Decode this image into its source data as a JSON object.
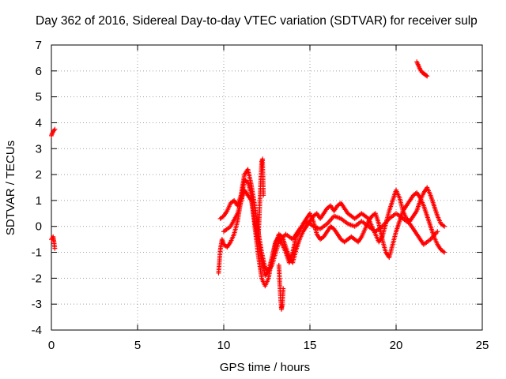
{
  "chart_data": {
    "type": "scatter",
    "title": "Day 362 of 2016, Sidereal Day-to-day VTEC variation (SDTVAR) for receiver sulp",
    "xlabel": "GPS time / hours",
    "ylabel": "SDTVAR / TECUs",
    "xlim": [
      0,
      25
    ],
    "ylim": [
      -4,
      7
    ],
    "x_ticks": [
      0,
      5,
      10,
      15,
      20,
      25
    ],
    "y_ticks": [
      -4,
      -3,
      -2,
      -1,
      0,
      1,
      2,
      3,
      4,
      5,
      6,
      7
    ],
    "grid": true,
    "marker": "+",
    "color": "#ff0000",
    "series": [
      {
        "segments": [
          {
            "x": [
              0.0,
              0.05,
              0.1,
              0.15,
              0.2
            ],
            "y": [
              3.5,
              3.6,
              3.65,
              3.7,
              3.75
            ]
          },
          {
            "x": [
              0.0,
              0.05,
              0.1,
              0.15,
              0.2
            ],
            "y": [
              -0.5,
              -0.45,
              -0.4,
              -0.6,
              -0.85
            ]
          },
          {
            "x": [
              9.7,
              9.8,
              9.9,
              10.0,
              10.2,
              10.4,
              10.6,
              10.8,
              11.0,
              11.2,
              11.4,
              11.6,
              11.8,
              12.0,
              12.2,
              12.4,
              12.6,
              12.8,
              13.0,
              13.2,
              13.4,
              13.6,
              13.8,
              14.0,
              14.2,
              14.4,
              14.6,
              14.8,
              15.0,
              15.2,
              15.4,
              15.6,
              15.8,
              16.0,
              16.2,
              16.4,
              16.6,
              16.8,
              17.0,
              17.2,
              17.4,
              17.6,
              17.8,
              18.0,
              18.2,
              18.4,
              18.6,
              18.8,
              19.0,
              19.2,
              19.4,
              19.6,
              19.8,
              20.0,
              20.2,
              20.4,
              20.6,
              20.8,
              21.0,
              21.2,
              21.4,
              21.6,
              21.8,
              22.0,
              22.2,
              22.4,
              22.6,
              22.8
            ],
            "y": [
              -1.8,
              -0.9,
              -0.5,
              -0.7,
              -0.8,
              -0.6,
              -0.3,
              0.2,
              1.0,
              1.8,
              1.7,
              1.2,
              0.0,
              -1.1,
              -2.0,
              -2.3,
              -2.0,
              -1.2,
              -0.6,
              -0.4,
              -0.7,
              -1.0,
              -1.4,
              -1.0,
              -0.4,
              -0.2,
              0.1,
              0.3,
              0.5,
              0.2,
              -0.3,
              -0.5,
              -0.4,
              -0.2,
              0.0,
              -0.1,
              -0.3,
              -0.5,
              -0.6,
              -0.5,
              -0.4,
              -0.5,
              -0.6,
              -0.4,
              -0.1,
              0.2,
              0.4,
              0.5,
              0.1,
              -0.5,
              -1.0,
              -1.2,
              -0.7,
              -0.2,
              0.2,
              0.6,
              0.8,
              1.0,
              1.2,
              1.3,
              1.1,
              0.8,
              0.4,
              0.0,
              -0.4,
              -0.7,
              -0.9,
              -1.0
            ]
          },
          {
            "x": [
              9.8,
              10.0,
              10.2,
              10.4,
              10.6,
              10.8,
              11.0,
              11.2,
              11.4,
              11.6,
              11.8,
              12.0,
              12.2,
              12.4,
              12.6,
              12.8,
              13.0,
              13.2,
              13.4,
              13.6,
              13.8,
              14.0,
              14.2,
              14.4,
              14.6,
              14.8,
              15.0,
              15.2,
              15.4,
              15.6,
              15.8,
              16.0,
              16.2,
              16.4,
              16.6,
              16.8,
              17.0,
              17.2,
              17.4,
              17.6,
              17.8,
              18.0,
              18.2,
              18.4,
              18.6,
              18.8,
              19.0,
              19.2,
              19.4,
              19.6,
              19.8,
              20.0,
              20.2,
              20.4,
              20.6,
              20.8,
              21.0,
              21.2,
              21.4,
              21.6,
              21.8,
              22.0,
              22.2,
              22.4,
              22.6,
              22.8
            ],
            "y": [
              0.3,
              0.4,
              0.6,
              0.9,
              1.0,
              0.8,
              1.2,
              2.0,
              2.2,
              1.6,
              0.8,
              -0.2,
              -1.0,
              -1.6,
              -1.7,
              -1.2,
              -0.7,
              -0.3,
              -0.4,
              -0.8,
              -1.2,
              -1.4,
              -0.9,
              -0.5,
              -0.2,
              0.0,
              0.2,
              0.4,
              0.5,
              0.3,
              0.5,
              0.7,
              0.8,
              0.6,
              0.8,
              0.9,
              0.7,
              0.5,
              0.4,
              0.3,
              0.4,
              0.5,
              0.4,
              0.3,
              0.0,
              -0.3,
              -0.6,
              -0.4,
              0.1,
              0.6,
              1.0,
              1.4,
              1.1,
              0.6,
              0.3,
              0.2,
              0.4,
              0.6,
              1.0,
              1.3,
              1.5,
              1.2,
              0.8,
              0.4,
              0.1,
              0.0
            ]
          },
          {
            "x": [
              10.0,
              10.4,
              10.8,
              11.2,
              11.6,
              12.0,
              12.4,
              12.8,
              13.2,
              13.6,
              14.0,
              14.4,
              14.8,
              15.2,
              15.6,
              16.0,
              16.4,
              16.8,
              17.2,
              17.6,
              18.0,
              18.4,
              18.8,
              19.2,
              19.6,
              20.0,
              20.4,
              20.8,
              21.2,
              21.6,
              22.0,
              22.4
            ],
            "y": [
              -0.2,
              0.0,
              0.5,
              1.4,
              1.0,
              -0.6,
              -1.9,
              -1.5,
              -0.6,
              -0.3,
              -0.5,
              -0.1,
              0.2,
              0.0,
              -0.1,
              0.1,
              0.4,
              0.3,
              0.1,
              0.0,
              0.2,
              0.0,
              -0.2,
              0.0,
              0.3,
              0.5,
              0.3,
              0.1,
              -0.3,
              -0.7,
              -0.5,
              -0.2
            ]
          },
          {
            "x": [
              12.0,
              12.05,
              12.1,
              12.15,
              12.2,
              12.25,
              12.3
            ],
            "y": [
              -0.5,
              0.2,
              1.0,
              1.8,
              2.5,
              2.6,
              1.2
            ]
          },
          {
            "x": [
              13.2,
              13.25,
              13.3,
              13.35,
              13.4,
              13.45
            ],
            "y": [
              -1.5,
              -2.2,
              -2.8,
              -3.2,
              -3.0,
              -2.4
            ]
          },
          {
            "x": [
              21.2,
              21.3,
              21.4,
              21.5,
              21.6,
              21.7,
              21.8
            ],
            "y": [
              6.35,
              6.2,
              6.05,
              5.95,
              5.9,
              5.85,
              5.8
            ]
          }
        ]
      }
    ]
  }
}
